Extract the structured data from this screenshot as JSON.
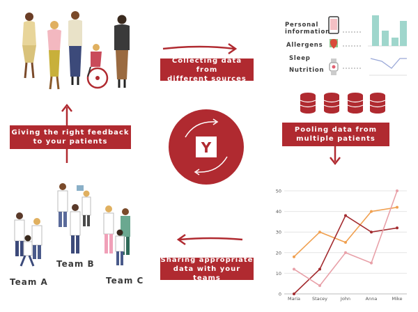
{
  "colors": {
    "brand": "#b02a30",
    "accent_light": "#e8e8e8",
    "teal": "#9fd6cc",
    "text": "#3a3a3a"
  },
  "center_logo": {
    "letter": "Y"
  },
  "steps": {
    "collect": {
      "line1": "Collecting data from",
      "line2": "different sources"
    },
    "pool": {
      "line1": "Pooling data from",
      "line2": "multiple patients"
    },
    "share": {
      "line1": "Sharing appropriate",
      "line2": "data with your teams"
    },
    "feedback": {
      "line1": "Giving the right feedback",
      "line2": "to your patients"
    }
  },
  "sources": {
    "personal": {
      "line1": "Personal",
      "line2": "information"
    },
    "allergens": "Allergens",
    "sleep": "Sleep",
    "nutrition": "Nutrition"
  },
  "teams": {
    "a": "Team A",
    "b": "Team B",
    "c": "Team C"
  },
  "icons": [
    "person-group-icon",
    "phone-icon",
    "map-pin-icon",
    "smartwatch-icon",
    "database-icon",
    "doctor-team-icon",
    "arrow-icon"
  ],
  "chart_data": {
    "type": "line",
    "categories": [
      "Maria",
      "Stacey",
      "John",
      "Anna",
      "Mike"
    ],
    "ylim": [
      0,
      50
    ],
    "yticks": [
      0,
      10,
      20,
      30,
      40,
      50
    ],
    "grid": true,
    "series": [
      {
        "color": "#f0a050",
        "values": [
          18,
          30,
          25,
          40,
          42
        ]
      },
      {
        "color": "#a32b2f",
        "values": [
          0,
          12,
          38,
          30,
          32
        ]
      },
      {
        "color": "#e8a0a8",
        "values": [
          12,
          4,
          20,
          15,
          50
        ]
      }
    ]
  }
}
